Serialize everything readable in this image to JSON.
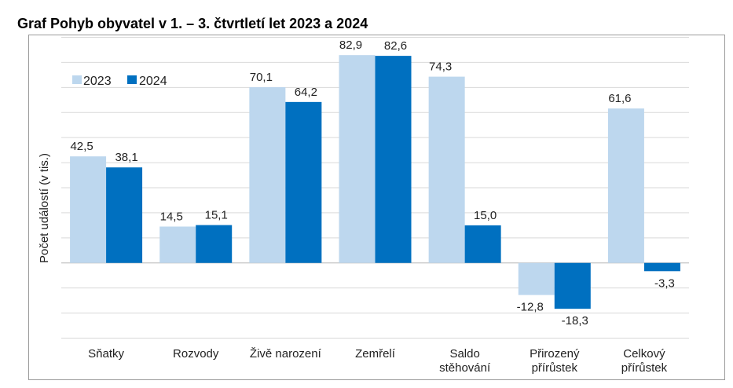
{
  "title": "Graf Pohyb obyvatel v 1. – 3. čtvrtletí let 2023 a 2024",
  "chart_data": {
    "type": "bar",
    "title": "Graf Pohyb obyvatel v 1. – 3. čtvrtletí let 2023 a 2024",
    "xlabel": "",
    "ylabel": "Počet událostí  (v tis.)",
    "categories": [
      [
        "Sňatky"
      ],
      [
        "Rozvody"
      ],
      [
        "Živě narození"
      ],
      [
        "Zemřelí"
      ],
      [
        "Saldo",
        "stěhování"
      ],
      [
        "Přirozený",
        "přírůstek"
      ],
      [
        "Celkový",
        "přírůstek"
      ]
    ],
    "series": [
      {
        "name": "2023",
        "color": "#bdd7ee",
        "values": [
          42.5,
          14.5,
          70.1,
          82.9,
          74.3,
          -12.8,
          61.6
        ],
        "labels": [
          "42,5",
          "14,5",
          "70,1",
          "82,9",
          "74,3",
          "-12,8",
          "61,6"
        ]
      },
      {
        "name": "2024",
        "color": "#0070c0",
        "values": [
          38.1,
          15.1,
          64.2,
          82.6,
          15.0,
          -18.3,
          -3.3
        ],
        "labels": [
          "38,1",
          "15,1",
          "64,2",
          "82,6",
          "15,0",
          "-18,3",
          "-3,3"
        ]
      }
    ],
    "ylim": [
      -30,
      90
    ],
    "ytick_step": 10,
    "y_tick_labels_shown": false,
    "grid": true,
    "legend": "top-left"
  }
}
